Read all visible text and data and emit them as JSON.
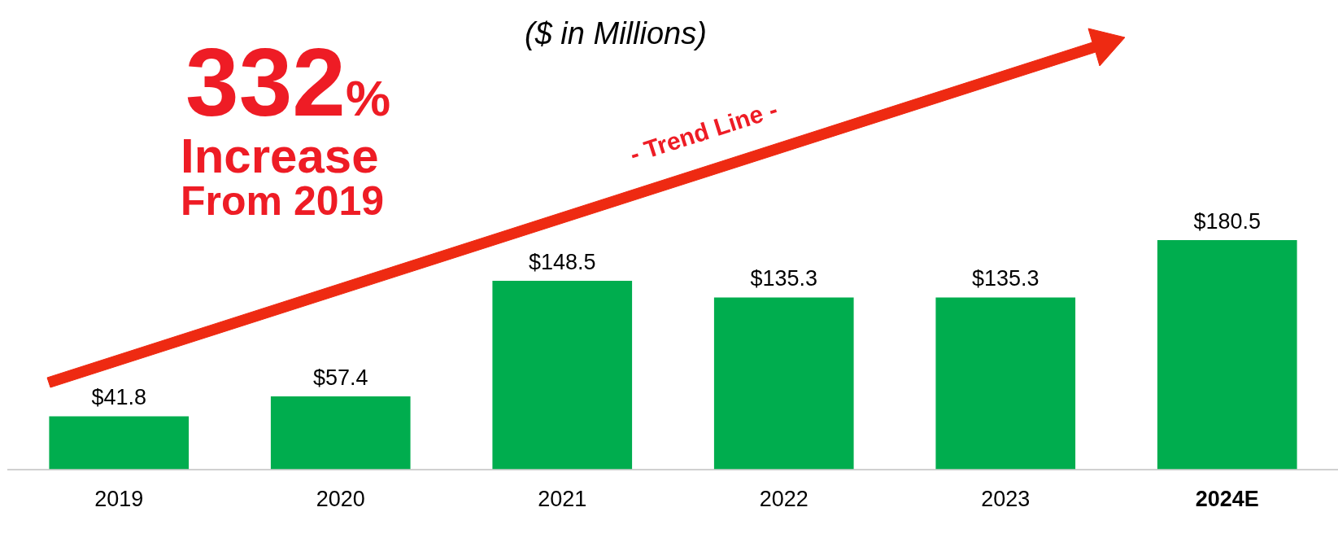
{
  "chart_data": {
    "type": "bar",
    "categories": [
      "2019",
      "2020",
      "2021",
      "2022",
      "2023",
      "2024E"
    ],
    "values": [
      41.8,
      57.4,
      148.5,
      135.3,
      135.3,
      180.5
    ],
    "value_labels": [
      "$41.8",
      "$57.4",
      "$148.5",
      "$135.3",
      "$135.3",
      "$180.5"
    ],
    "color": "#00ad4e",
    "grid": false,
    "legend": false,
    "annotations": [
      "($ in Millions)",
      "332%",
      "Increase",
      "From 2019",
      "- Trend Line -"
    ]
  }
}
